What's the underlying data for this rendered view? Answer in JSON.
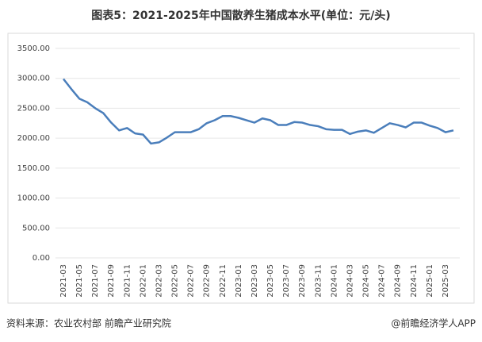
{
  "chart_data": {
    "type": "line",
    "title": "图表5：2021-2025年中国散养生猪成本水平(单位：元/头)",
    "source": "资料来源：农业农村部 前瞻产业研究院",
    "credit": "@前瞻经济学人APP",
    "categories": [
      "2021-03",
      null,
      "2021-05",
      null,
      "2021-07",
      null,
      "2021-09",
      null,
      "2021-11",
      null,
      "2022-01",
      null,
      "2022-03",
      null,
      "2022-05",
      null,
      "2022-07",
      null,
      "2022-09",
      null,
      "2022-11",
      null,
      "2023-01",
      null,
      "2023-03",
      null,
      "2023-05",
      null,
      "2023-07",
      null,
      "2023-09",
      null,
      "2023-11",
      null,
      "2024-01",
      null,
      "2024-03",
      null,
      "2024-05",
      null,
      "2024-07",
      null,
      "2024-09",
      null,
      "2024-11",
      null,
      "2025-01",
      null,
      "2025-03",
      null
    ],
    "values": [
      2990,
      2820,
      2660,
      2600,
      2500,
      2420,
      2260,
      2130,
      2170,
      2080,
      2060,
      1910,
      1930,
      2010,
      2100,
      2100,
      2100,
      2150,
      2250,
      2300,
      2370,
      2370,
      2340,
      2300,
      2260,
      2330,
      2300,
      2220,
      2220,
      2270,
      2260,
      2220,
      2200,
      2150,
      2140,
      2140,
      2070,
      2110,
      2130,
      2090,
      2170,
      2250,
      2220,
      2180,
      2260,
      2260,
      2210,
      2170,
      2100,
      2130
    ],
    "color": "#4a7ebb",
    "ylim": [
      0,
      3500
    ],
    "yticks": [
      {
        "value": 0,
        "label": "0.00"
      },
      {
        "value": 500,
        "label": "500.00"
      },
      {
        "value": 1000,
        "label": "1000.00"
      },
      {
        "value": 1500,
        "label": "1500.00"
      },
      {
        "value": 2000,
        "label": "2000.00"
      },
      {
        "value": 2500,
        "label": "2500.00"
      },
      {
        "value": 3000,
        "label": "3000.00"
      },
      {
        "value": 3500,
        "label": "3500.00"
      }
    ],
    "grid": true
  }
}
